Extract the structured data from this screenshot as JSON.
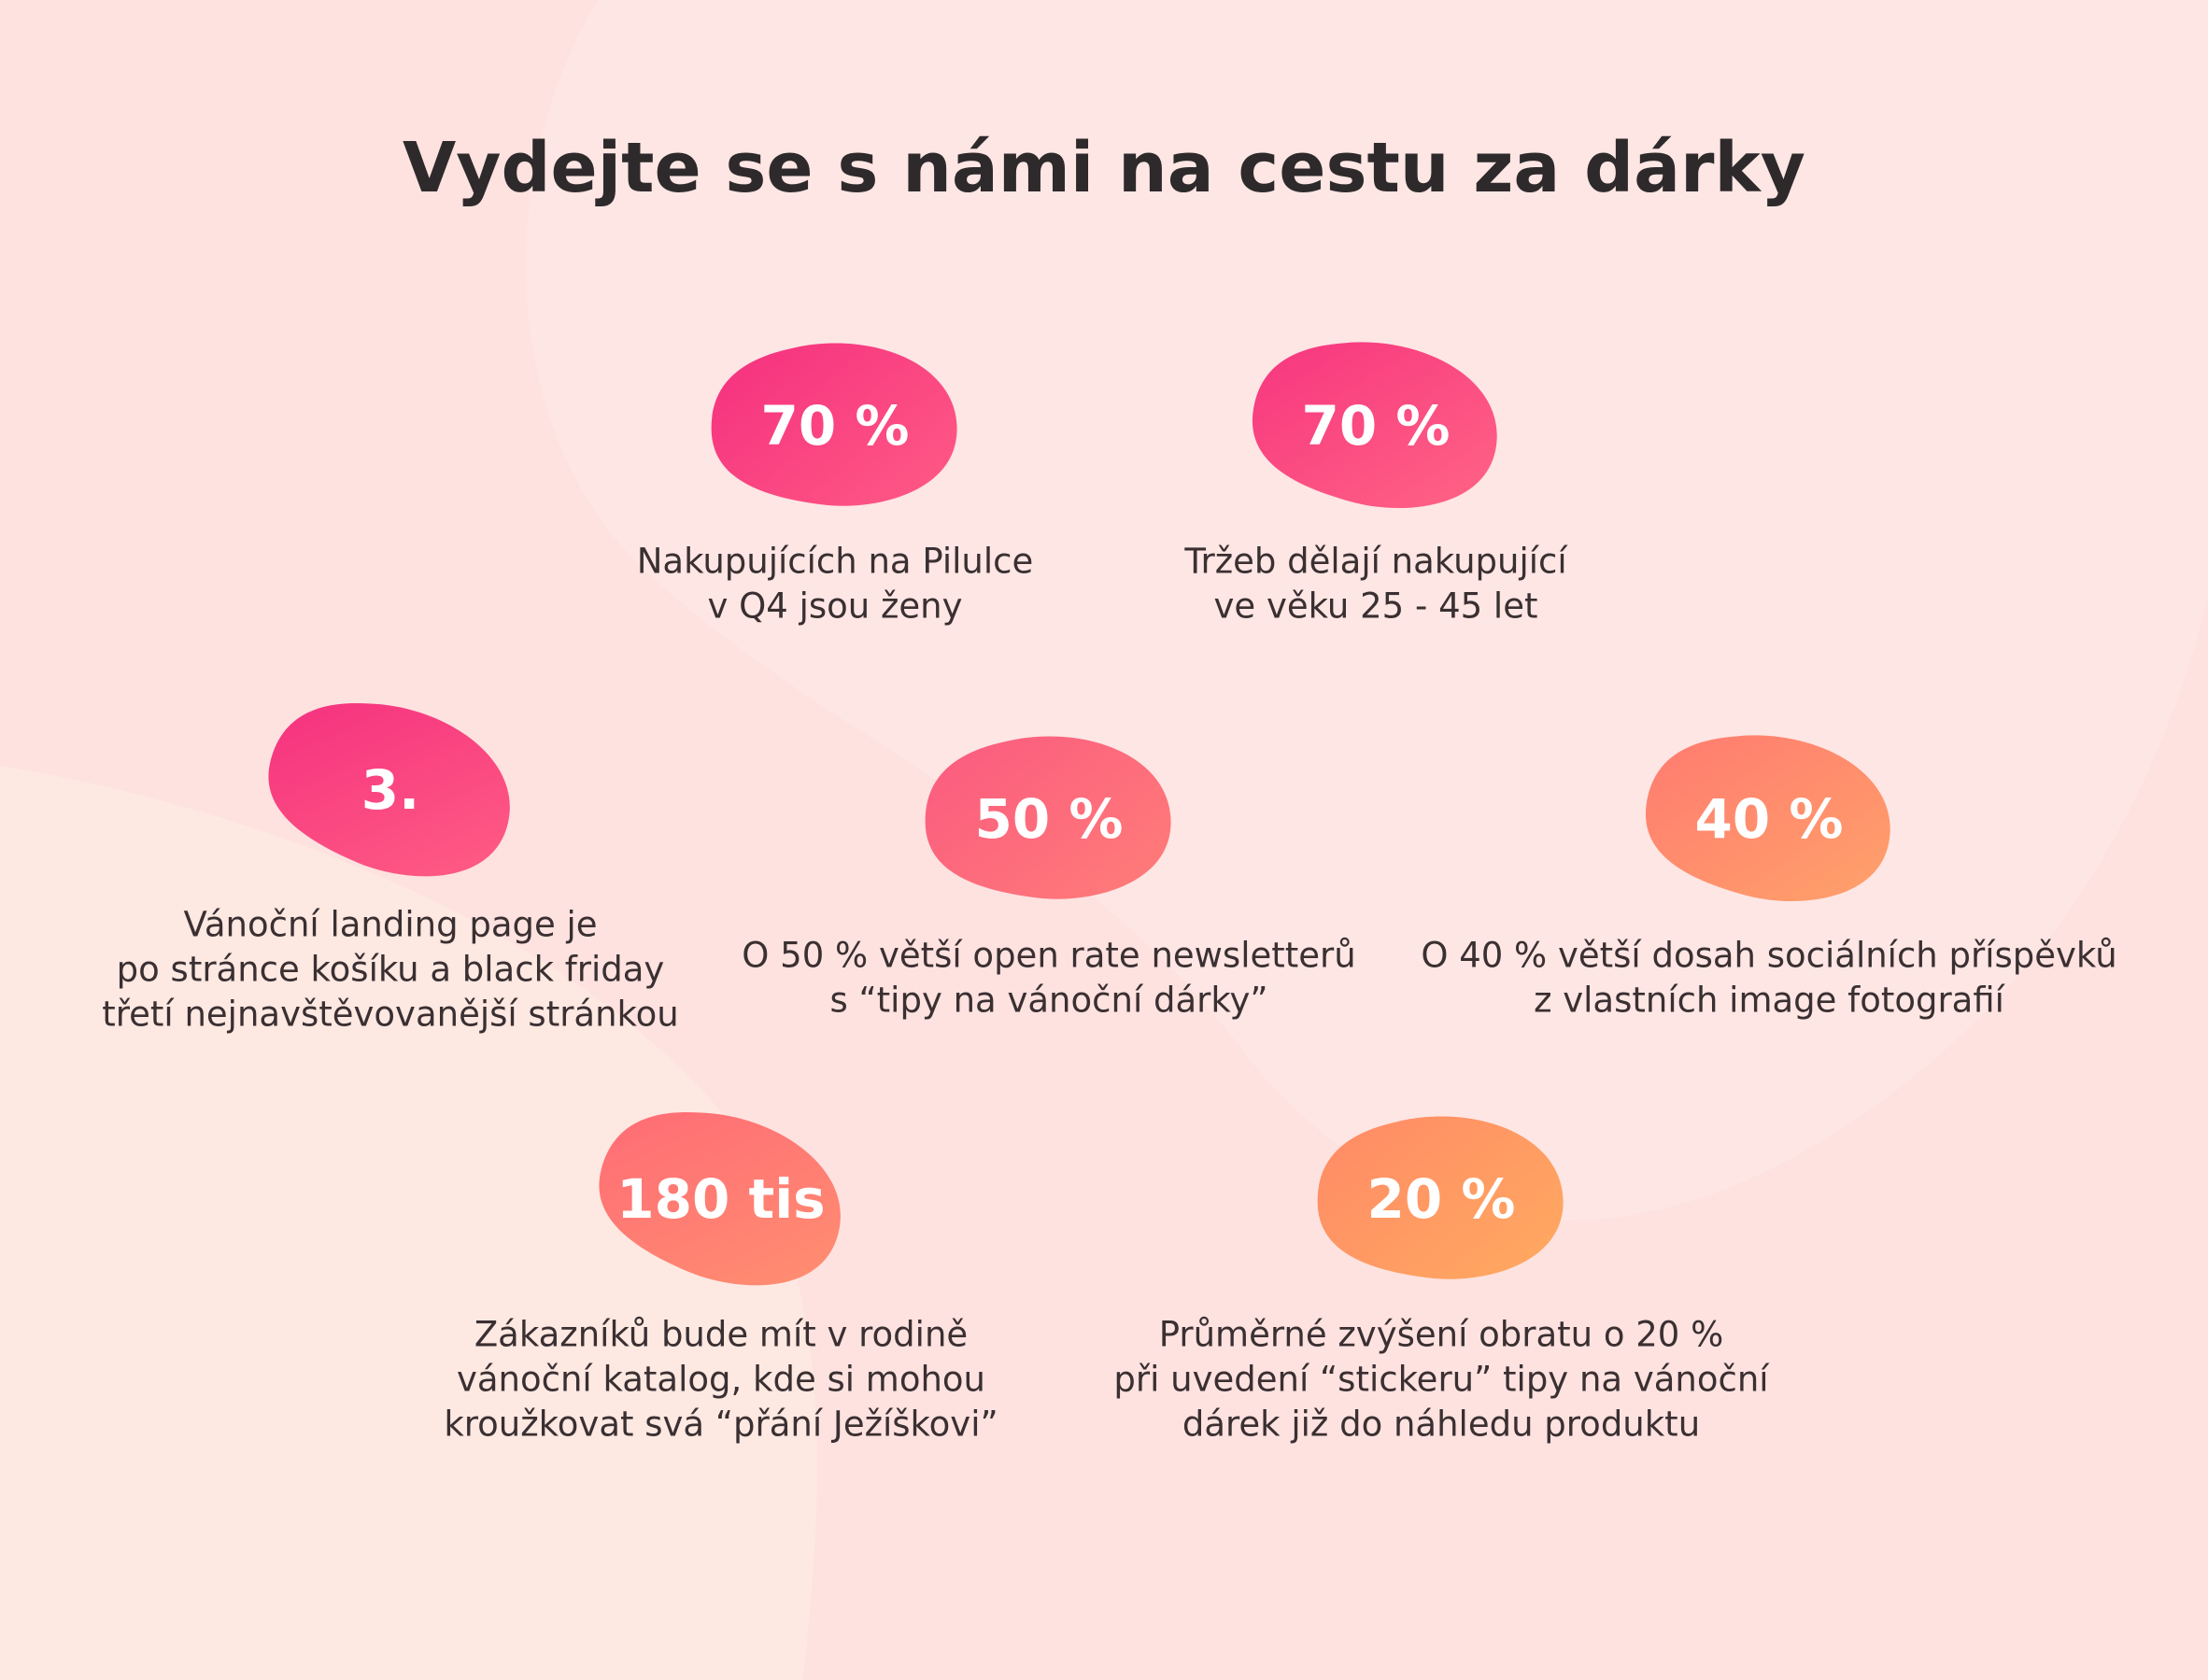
{
  "title": "Vydejte se s námi na cestu za dárky",
  "stats": [
    {
      "value": "70 %",
      "description": [
        "Nakupujících na Pilulce",
        "v Q4 jsou ženy"
      ]
    },
    {
      "value": "70 %",
      "description": [
        "Tržeb dělají nakupující",
        "ve věku 25 - 45 let"
      ]
    },
    {
      "value": "3.",
      "description": [
        "Vánoční landing page je",
        "po stránce košíku a black friday",
        "třetí nejnavštěvovanější stránkou"
      ]
    },
    {
      "value": "50 %",
      "description": [
        "O 50 % větší open rate newsletterů",
        "s “tipy na vánoční dárky”"
      ]
    },
    {
      "value": "40 %",
      "description": [
        "O 40 % větší dosah sociálních příspěvků",
        "z vlastních image fotografií"
      ]
    },
    {
      "value": "180 tis",
      "description": [
        "Zákazníků bude mít v rodině",
        "vánoční katalog, kde si mohou",
        "kroužkovat svá “přání Ježíškovi”"
      ]
    },
    {
      "value": "20 %",
      "description": [
        "Průměrné zvýšení obratu o 20 %",
        "při uvedení “stickeru” tipy na vánoční",
        "dárek již do náhledu produktu"
      ]
    }
  ]
}
